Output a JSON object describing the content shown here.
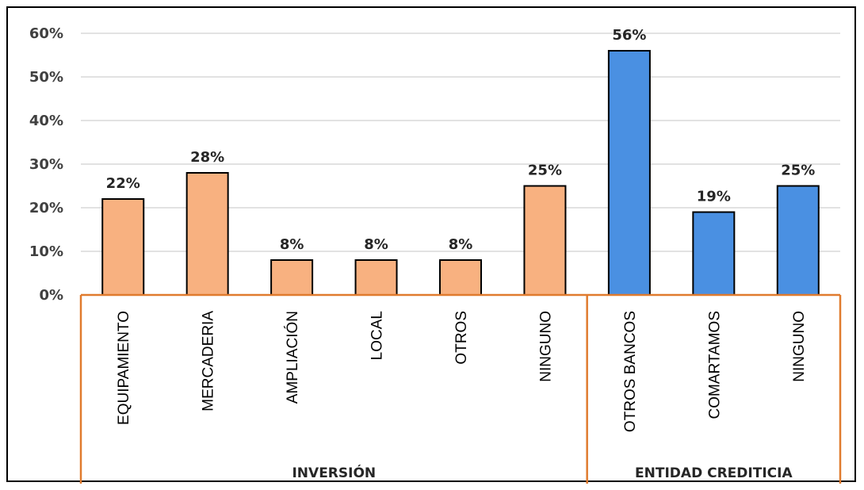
{
  "chart_data": {
    "type": "bar",
    "categories": [
      "EQUIPAMIENTO",
      "MERCADERIA",
      "AMPLIACIÓN",
      "LOCAL",
      "OTROS",
      "NINGUNO",
      "OTROS BANCOS",
      "COMARTAMOS",
      "NINGUNO"
    ],
    "values": [
      22,
      28,
      8,
      8,
      8,
      25,
      56,
      19,
      25
    ],
    "value_labels": [
      "22%",
      "28%",
      "8%",
      "8%",
      "8%",
      "25%",
      "56%",
      "19%",
      "25%"
    ],
    "groups": [
      {
        "label": "INVERSIÓN",
        "start": 0,
        "count": 6,
        "color": "#F8B180"
      },
      {
        "label": "ENTIDAD CREDITICIA",
        "start": 6,
        "count": 3,
        "color": "#4A90E2"
      }
    ],
    "ylim": [
      0,
      60
    ],
    "yticks": [
      0,
      10,
      20,
      30,
      40,
      50,
      60
    ],
    "ytick_labels": [
      "0%",
      "10%",
      "20%",
      "30%",
      "40%",
      "50%",
      "60%"
    ],
    "grid": true,
    "colors": {
      "gridline": "#D9D9D9",
      "axis": "#E07B2E",
      "bar_border": "#000000"
    }
  }
}
